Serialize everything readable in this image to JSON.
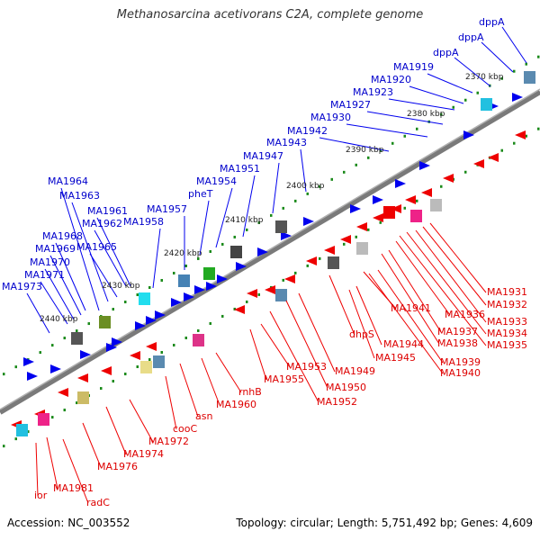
{
  "title": "Methanosarcina acetivorans C2A, complete genome",
  "footer": {
    "accession": "Accession: NC_003552",
    "summary": "Topology: circular; Length: 5,751,492 bp; Genes: 4,609"
  },
  "colors": {
    "axis": "#808080",
    "tick": "#1a8a1a",
    "forward": "#0000ee",
    "reverse": "#ee0000",
    "label_forward": "#0000cc",
    "label_reverse": "#dd0000"
  },
  "scale_labels": [
    "2370 kbp",
    "2380 kbp",
    "2390 kbp",
    "2400 kbp",
    "2410 kbp",
    "2420 kbp",
    "2430 kbp",
    "2440 kbp"
  ],
  "forward_labels": [
    "dppA",
    "dppA",
    "dppA",
    "MA1919",
    "MA1920",
    "MA1923",
    "MA1927",
    "MA1930",
    "MA1942",
    "MA1943",
    "MA1947",
    "MA1951",
    "MA1954",
    "pheT",
    "MA1957",
    "MA1958",
    "MA1961",
    "MA1962",
    "MA1963",
    "MA1964",
    "MA1965",
    "MA1968",
    "MA1969",
    "MA1970",
    "MA1971",
    "MA1973"
  ],
  "reverse_labels": [
    "MA1931",
    "MA1932",
    "MA1933",
    "MA1934",
    "MA1935",
    "MA1936",
    "MA1937",
    "MA1938",
    "MA1939",
    "MA1940",
    "MA1941",
    "MA1944",
    "MA1945",
    "dhpS",
    "MA1949",
    "MA1950",
    "MA1952",
    "MA1953",
    "MA1955",
    "rnhB",
    "MA1960",
    "asn",
    "cooC",
    "MA1972",
    "MA1974",
    "MA1976",
    "MA1981",
    "radC",
    "ior"
  ]
}
